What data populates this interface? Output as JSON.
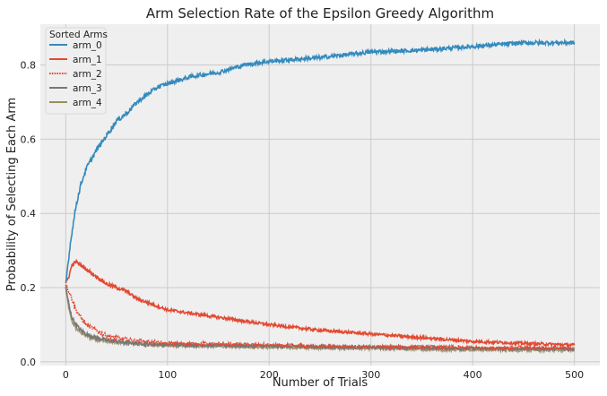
{
  "chart_data": {
    "type": "line",
    "title": "Arm Selection Rate of the Epsilon Greedy Algorithm",
    "xlabel": "Number of Trials",
    "ylabel": "Probability of Selecting Each Arm",
    "xlim": [
      -25,
      525
    ],
    "ylim": [
      -0.01,
      0.91
    ],
    "xticks": [
      0,
      100,
      200,
      300,
      400,
      500
    ],
    "yticks": [
      0.0,
      0.2,
      0.4,
      0.6,
      0.8
    ],
    "grid": true,
    "legend": {
      "title": "Sorted Arms",
      "placement": "top-left"
    },
    "series": [
      {
        "name": "arm_0",
        "color": "#348ABD",
        "x": [
          0,
          2,
          5,
          10,
          15,
          20,
          30,
          40,
          50,
          60,
          70,
          80,
          90,
          100,
          125,
          150,
          175,
          200,
          250,
          300,
          350,
          400,
          450,
          500
        ],
        "values": [
          0.21,
          0.26,
          0.33,
          0.42,
          0.48,
          0.52,
          0.57,
          0.61,
          0.65,
          0.67,
          0.7,
          0.72,
          0.74,
          0.75,
          0.77,
          0.78,
          0.8,
          0.81,
          0.82,
          0.835,
          0.84,
          0.85,
          0.86,
          0.86
        ]
      },
      {
        "name": "arm_1",
        "color": "#E24A33",
        "x": [
          0,
          3,
          6,
          10,
          15,
          20,
          30,
          40,
          50,
          60,
          70,
          80,
          90,
          100,
          125,
          150,
          175,
          200,
          250,
          300,
          350,
          400,
          450,
          500
        ],
        "values": [
          0.21,
          0.23,
          0.26,
          0.27,
          0.26,
          0.25,
          0.23,
          0.21,
          0.2,
          0.19,
          0.17,
          0.16,
          0.15,
          0.14,
          0.13,
          0.12,
          0.11,
          0.1,
          0.085,
          0.075,
          0.065,
          0.055,
          0.05,
          0.045
        ]
      },
      {
        "name": "arm_2",
        "color": "#E24A33",
        "x": [
          0,
          3,
          6,
          10,
          15,
          20,
          30,
          40,
          50,
          60,
          70,
          80,
          100,
          150,
          200,
          250,
          300,
          350,
          400,
          450,
          500
        ],
        "values": [
          0.21,
          0.19,
          0.17,
          0.14,
          0.12,
          0.1,
          0.085,
          0.07,
          0.065,
          0.06,
          0.057,
          0.055,
          0.05,
          0.048,
          0.045,
          0.042,
          0.04,
          0.04,
          0.038,
          0.038,
          0.037
        ]
      },
      {
        "name": "arm_3",
        "color": "#777777",
        "x": [
          0,
          2,
          4,
          6,
          10,
          15,
          20,
          30,
          40,
          50,
          60,
          70,
          80,
          100,
          150,
          200,
          250,
          300,
          350,
          400,
          450,
          500
        ],
        "values": [
          0.2,
          0.17,
          0.14,
          0.12,
          0.1,
          0.085,
          0.075,
          0.065,
          0.058,
          0.055,
          0.052,
          0.05,
          0.048,
          0.046,
          0.044,
          0.042,
          0.04,
          0.039,
          0.038,
          0.036,
          0.035,
          0.035
        ]
      },
      {
        "name": "arm_4",
        "color": "#988E5E",
        "x": [
          0,
          2,
          4,
          6,
          10,
          15,
          20,
          30,
          40,
          50,
          60,
          70,
          80,
          100,
          150,
          200,
          250,
          300,
          350,
          400,
          450,
          500
        ],
        "values": [
          0.2,
          0.16,
          0.13,
          0.11,
          0.09,
          0.078,
          0.07,
          0.06,
          0.055,
          0.052,
          0.05,
          0.048,
          0.046,
          0.044,
          0.042,
          0.04,
          0.038,
          0.036,
          0.034,
          0.033,
          0.032,
          0.032
        ]
      }
    ]
  }
}
